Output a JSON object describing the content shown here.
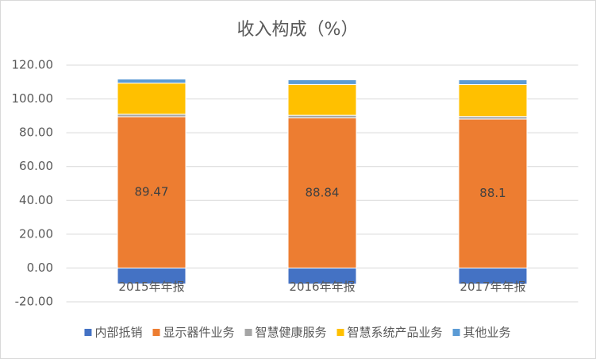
{
  "chart_data": {
    "type": "stacked_bar",
    "title": "收入构成（%）",
    "categories": [
      "2015年年报",
      "2016年年报",
      "2017年年报"
    ],
    "series": [
      {
        "name": "内部抵销",
        "color": "#4472c4",
        "values": [
          -9.4,
          -9.5,
          -9.5
        ]
      },
      {
        "name": "显示器件业务",
        "color": "#ed7d31",
        "values": [
          89.47,
          88.84,
          88.1
        ],
        "data_labels": true
      },
      {
        "name": "智慧健康服务",
        "color": "#a5a5a5",
        "values": [
          1.5,
          1.5,
          1.5
        ]
      },
      {
        "name": "智慧系统产品业务",
        "color": "#ffc000",
        "values": [
          18.4,
          18.2,
          18.9
        ]
      },
      {
        "name": "其他业务",
        "color": "#5b9bd5",
        "values": [
          2.4,
          2.8,
          2.8
        ]
      }
    ],
    "ylim": [
      -20,
      120
    ],
    "yticks": [
      {
        "value": -20,
        "label": "-20.00"
      },
      {
        "value": 0,
        "label": "0.00"
      },
      {
        "value": 20,
        "label": "20.00"
      },
      {
        "value": 40,
        "label": "40.00"
      },
      {
        "value": 60,
        "label": "60.00"
      },
      {
        "value": 80,
        "label": "80.00"
      },
      {
        "value": 100,
        "label": "100.00"
      },
      {
        "value": 120,
        "label": "120.00"
      }
    ],
    "grid": true,
    "legend": "bottom"
  }
}
